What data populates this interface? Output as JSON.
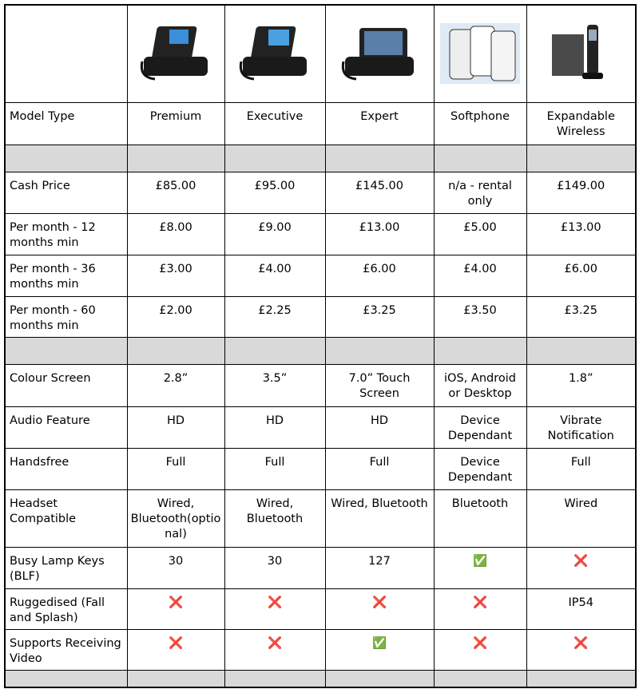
{
  "table": {
    "rows": [
      [
        "Model Type",
        "Premium",
        "Executive",
        "Expert",
        "Softphone",
        "Expandable Wireless"
      ],
      [
        "Cash Price",
        "£85.00",
        "£95.00",
        "£145.00",
        "n/a - rental only",
        "£149.00"
      ],
      [
        "Per month - 12 months min",
        "£8.00",
        "£9.00",
        "£13.00",
        "£5.00",
        "£13.00"
      ],
      [
        "Per month - 36 months min",
        "£3.00",
        "£4.00",
        "£6.00",
        "£4.00",
        "£6.00"
      ],
      [
        "Per month - 60 months min",
        "£2.00",
        "£2.25",
        "£3.25",
        "£3.50",
        "£3.25"
      ],
      [
        "Colour Screen",
        "2.8”",
        "3.5”",
        "7.0” Touch Screen",
        "iOS, Android or Desktop",
        "1.8”"
      ],
      [
        "Audio Feature",
        "HD",
        "HD",
        "HD",
        "Device Dependant",
        "Vibrate Notification"
      ],
      [
        "Handsfree",
        "Full",
        "Full",
        "Full",
        "Device Dependant",
        "Full"
      ],
      [
        "Headset Compatible",
        "Wired, Bluetooth(optional)",
        "Wired, Bluetooth",
        "Wired, Bluetooth",
        "Bluetooth",
        "Wired"
      ],
      [
        "Busy Lamp Keys (BLF)",
        "30",
        "30",
        "127",
        "✅",
        "❌"
      ],
      [
        "Ruggedised (Fall and Splash)",
        "❌",
        "❌",
        "❌",
        "❌",
        "IP54"
      ],
      [
        "Supports Receiving Video",
        "❌",
        "❌",
        "✅",
        "❌",
        "❌"
      ]
    ]
  }
}
